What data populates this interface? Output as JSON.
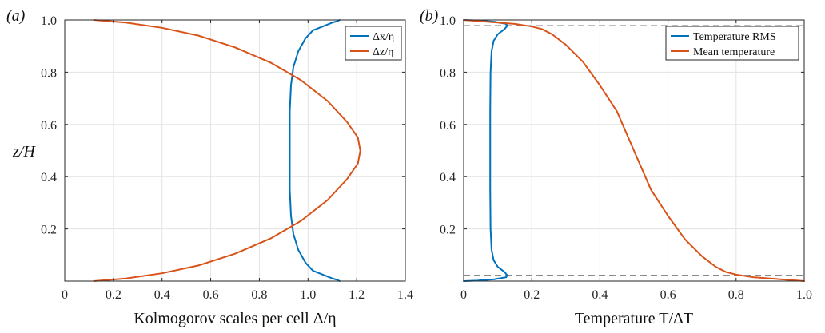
{
  "chart_data": [
    {
      "panel_label": "(a)",
      "type": "line",
      "xlabel": "Kolmogorov scales per cell Δ/η",
      "ylabel": "z/H",
      "xlim": [
        0,
        1.4
      ],
      "ylim": [
        0,
        1.0
      ],
      "xticks": [
        "0",
        "0.2",
        "0.4",
        "0.6",
        "0.8",
        "1.0",
        "1.2",
        "1.4"
      ],
      "yticks": [
        "0.2",
        "0.4",
        "0.6",
        "0.8",
        "1.0"
      ],
      "grid": true,
      "legend_position": "top-right",
      "series": [
        {
          "name": "Δx/η",
          "color": "#0072BD",
          "points": [
            [
              1.13,
              1.0
            ],
            [
              1.12,
              0.995
            ],
            [
              1.1,
              0.99
            ],
            [
              1.06,
              0.975
            ],
            [
              1.02,
              0.96
            ],
            [
              0.99,
              0.93
            ],
            [
              0.96,
              0.88
            ],
            [
              0.94,
              0.82
            ],
            [
              0.93,
              0.75
            ],
            [
              0.925,
              0.65
            ],
            [
              0.925,
              0.5
            ],
            [
              0.925,
              0.35
            ],
            [
              0.93,
              0.25
            ],
            [
              0.94,
              0.18
            ],
            [
              0.96,
              0.12
            ],
            [
              0.99,
              0.07
            ],
            [
              1.02,
              0.04
            ],
            [
              1.06,
              0.025
            ],
            [
              1.1,
              0.01
            ],
            [
              1.12,
              0.005
            ],
            [
              1.13,
              0.0
            ]
          ]
        },
        {
          "name": "Δz/η",
          "color": "#D95319",
          "points": [
            [
              0.12,
              1.0
            ],
            [
              0.25,
              0.99
            ],
            [
              0.4,
              0.97
            ],
            [
              0.55,
              0.94
            ],
            [
              0.7,
              0.895
            ],
            [
              0.85,
              0.835
            ],
            [
              0.97,
              0.77
            ],
            [
              1.08,
              0.69
            ],
            [
              1.16,
              0.61
            ],
            [
              1.205,
              0.55
            ],
            [
              1.215,
              0.5
            ],
            [
              1.205,
              0.45
            ],
            [
              1.16,
              0.39
            ],
            [
              1.08,
              0.31
            ],
            [
              0.97,
              0.23
            ],
            [
              0.85,
              0.165
            ],
            [
              0.7,
              0.105
            ],
            [
              0.55,
              0.06
            ],
            [
              0.4,
              0.03
            ],
            [
              0.25,
              0.01
            ],
            [
              0.12,
              0.0
            ]
          ]
        }
      ]
    },
    {
      "panel_label": "(b)",
      "type": "line",
      "xlabel": "Temperature T/ΔT",
      "ylabel": "",
      "xlim": [
        0,
        1.0
      ],
      "ylim": [
        0,
        1.0
      ],
      "xticks": [
        "0",
        "0.2",
        "0.4",
        "0.6",
        "0.8",
        "1.0"
      ],
      "yticks": [
        "0.2",
        "0.4",
        "0.6",
        "0.8",
        "1.0"
      ],
      "grid": true,
      "legend_position": "top-right",
      "reference_lines_y": [
        0.978,
        0.022
      ],
      "series": [
        {
          "name": "Temperature RMS",
          "color": "#0072BD",
          "points": [
            [
              0.0,
              1.0
            ],
            [
              0.04,
              0.998
            ],
            [
              0.09,
              0.993
            ],
            [
              0.125,
              0.985
            ],
            [
              0.128,
              0.978
            ],
            [
              0.12,
              0.965
            ],
            [
              0.1,
              0.945
            ],
            [
              0.088,
              0.92
            ],
            [
              0.082,
              0.88
            ],
            [
              0.079,
              0.8
            ],
            [
              0.078,
              0.65
            ],
            [
              0.078,
              0.5
            ],
            [
              0.078,
              0.35
            ],
            [
              0.079,
              0.2
            ],
            [
              0.082,
              0.12
            ],
            [
              0.088,
              0.08
            ],
            [
              0.1,
              0.055
            ],
            [
              0.12,
              0.035
            ],
            [
              0.128,
              0.022
            ],
            [
              0.125,
              0.015
            ],
            [
              0.09,
              0.007
            ],
            [
              0.04,
              0.002
            ],
            [
              0.0,
              0.0
            ]
          ]
        },
        {
          "name": "Mean temperature",
          "color": "#D95319",
          "points": [
            [
              0.0,
              1.0
            ],
            [
              0.05,
              0.995
            ],
            [
              0.1,
              0.99
            ],
            [
              0.15,
              0.985
            ],
            [
              0.2,
              0.975
            ],
            [
              0.23,
              0.965
            ],
            [
              0.26,
              0.945
            ],
            [
              0.3,
              0.905
            ],
            [
              0.35,
              0.84
            ],
            [
              0.4,
              0.75
            ],
            [
              0.45,
              0.65
            ],
            [
              0.5,
              0.5
            ],
            [
              0.55,
              0.35
            ],
            [
              0.6,
              0.25
            ],
            [
              0.65,
              0.16
            ],
            [
              0.7,
              0.095
            ],
            [
              0.74,
              0.055
            ],
            [
              0.77,
              0.035
            ],
            [
              0.8,
              0.025
            ],
            [
              0.85,
              0.015
            ],
            [
              0.9,
              0.01
            ],
            [
              0.95,
              0.005
            ],
            [
              1.0,
              0.0
            ]
          ]
        }
      ]
    }
  ]
}
